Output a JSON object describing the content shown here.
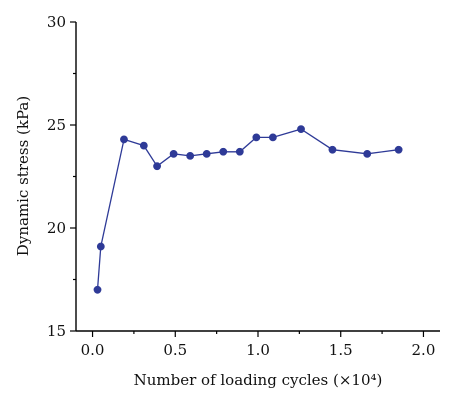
{
  "chart_data": {
    "type": "line",
    "xlabel": "Number of loading cycles (×10⁴)",
    "ylabel": "Dynamic stress (kPa)",
    "xlim": [
      -0.1,
      2.1
    ],
    "ylim": [
      15,
      30
    ],
    "x_ticks": [
      0.0,
      0.5,
      1.0,
      1.5,
      2.0
    ],
    "x_tick_labels": [
      "0.0",
      "0.5",
      "1.0",
      "1.5",
      "2.0"
    ],
    "y_ticks": [
      15,
      20,
      25,
      30
    ],
    "y_tick_labels": [
      "15",
      "20",
      "25",
      "30"
    ],
    "grid": false,
    "legend": false,
    "series": [
      {
        "color": "#2e3a97",
        "x": [
          0.03,
          0.05,
          0.19,
          0.31,
          0.39,
          0.49,
          0.59,
          0.69,
          0.79,
          0.89,
          0.99,
          1.09,
          1.26,
          1.45,
          1.66,
          1.85
        ],
        "y": [
          17.0,
          19.1,
          24.3,
          24.0,
          23.0,
          23.6,
          23.5,
          23.6,
          23.7,
          23.7,
          24.4,
          24.4,
          24.8,
          23.8,
          23.6,
          23.8
        ]
      }
    ]
  }
}
